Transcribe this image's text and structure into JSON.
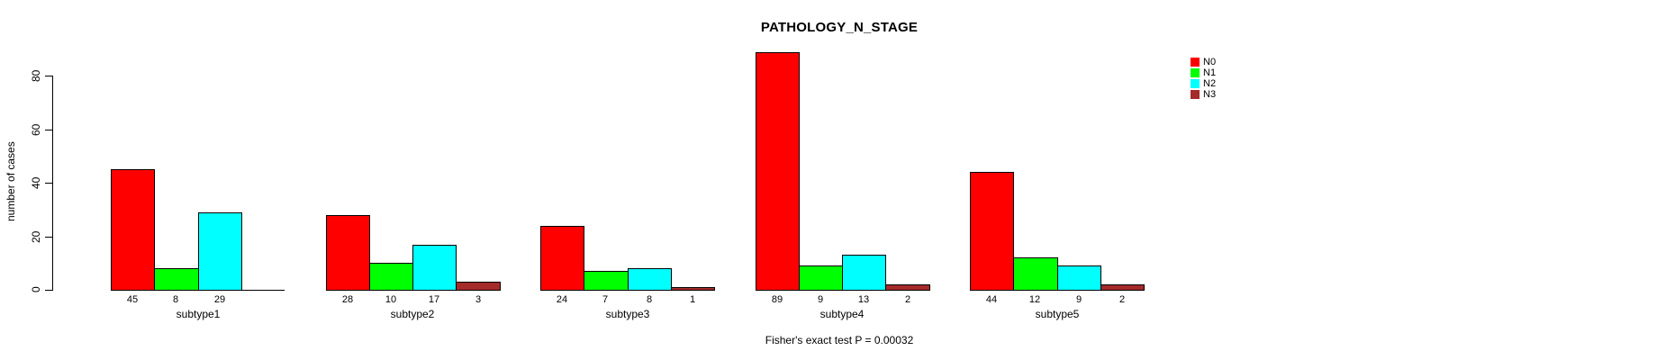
{
  "title": "PATHOLOGY_N_STAGE",
  "footer": "Fisher's exact test P = 0.00032",
  "chart_data": {
    "type": "bar",
    "title": "PATHOLOGY_N_STAGE",
    "xlabel": "",
    "ylabel": "number of cases",
    "ylim": [
      0,
      80
    ],
    "yticks": [
      0,
      20,
      40,
      60,
      80
    ],
    "grid": false,
    "legend_position": "top-right",
    "bar_value_labels_shown": true,
    "categories": [
      "subtype1",
      "subtype2",
      "subtype3",
      "subtype4",
      "subtype5"
    ],
    "series": [
      {
        "name": "N0",
        "color": "#FF0000",
        "values": [
          45,
          28,
          24,
          89,
          44
        ]
      },
      {
        "name": "N1",
        "color": "#00FF00",
        "values": [
          8,
          10,
          7,
          9,
          12
        ]
      },
      {
        "name": "N2",
        "color": "#00FFFF",
        "values": [
          29,
          17,
          8,
          13,
          9
        ]
      },
      {
        "name": "N3",
        "color": "#A52A2A",
        "values": [
          0,
          3,
          1,
          2,
          2
        ]
      }
    ],
    "annotation": "Fisher's exact test P = 0.00032"
  },
  "colors": {
    "N0": "#FF0000",
    "N1": "#00FF00",
    "N2": "#00FFFF",
    "N3": "#A52A2A",
    "axis": "#000000",
    "background": "#FFFFFF"
  }
}
